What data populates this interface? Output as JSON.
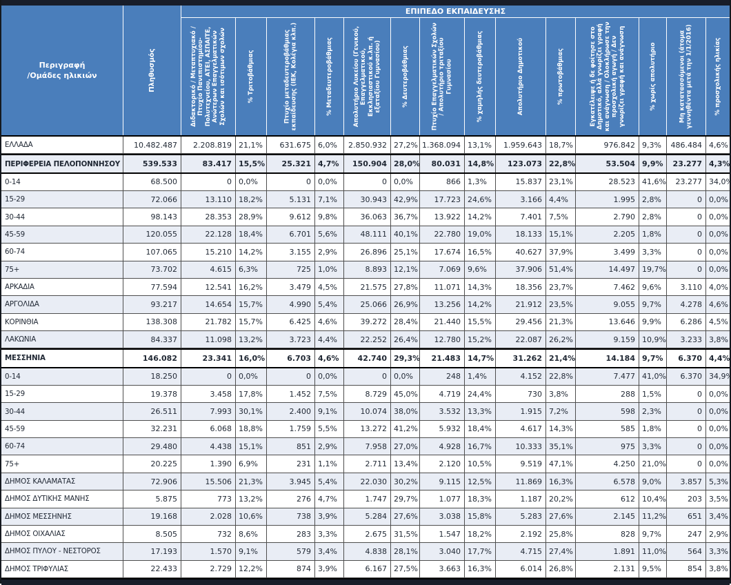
{
  "colors": {
    "header_blue": "#4A7EBB",
    "dark_band": "#181D29",
    "row_stripe": "#E9EDF5",
    "grid_line": "#4D4D4D",
    "text": "#1F2733",
    "header_text": "#FFFFFF"
  },
  "chart_data": {
    "type": "table",
    "title": "ΕΠΙΠΕΔΟ ΕΚΠΑΙΔΕΥΣΗΣ",
    "corner_header": "Περιγραφή\n/Ομάδες ηλικιών",
    "columns": [
      "Πληθυσμός",
      "Διδακτορικό / Μεταπτυχιακό / Πτυχίο Πανεπιστημίου-Πολυτεχνείου, ΑΤΕΙ, ΑΣΠΑΙΤΕ, Ανώτερων Επαγγελματικών Σχολών και ισότιμων σχολών",
      "% Τριτοβάθμιας",
      "Πτυχίο μεταδευτεροβάθμιας εκπαίδευσης (ΙΕΚ, Κολέγια κλπ.)",
      "% Μεταδευτεροβάθμιας",
      "Απολυτήριο Λυκείου (Γενικού, Επαγγελματικού, Εκκλησιαστικού κ.λπ. ή εξαταξίου Γυμνασίου)",
      "% Δευτεροβάθμιας",
      "Πτυχίο Επαγγελματικών Σχολών / Απολυτήριο τριταξίου Γυμνασίου",
      "% χαμηλής δευτεροβάθμιας",
      "Απολυτήριο Δημοτικού",
      "% πρωτοβάθμιας",
      "Εγκατέλειψε ή δε φοίτησε στο Δημοτικό, αλλά γνωρίζει γραφή και ανάγνωση / Ολοκλήρωσε την προσχολική αγωγή / Δεν γνωρίζει γραφή και ανάγνωση",
      "% χωρίς απολυτήριο",
      "Μη κατατασσόμενοι (άτομα γεννηθέντα μετά την 1/1/2016)",
      "% προσχολικής ηλικίας"
    ],
    "rows": [
      {
        "label": "ΕΛΛΑΔΑ",
        "bold": false,
        "values": [
          "10.482.487",
          "2.208.819",
          "21,1%",
          "631.675",
          "6,0%",
          "2.850.932",
          "27,2%",
          "1.368.094",
          "13,1%",
          "1.959.643",
          "18,7%",
          "976.842",
          "9,3%",
          "486.484",
          "4,6%"
        ]
      },
      {
        "label": "ΠΕΡΙΦΕΡΕΙΑ ΠΕΛΟΠΟΝΝΗΣΟΥ",
        "bold": true,
        "values": [
          "539.533",
          "83.417",
          "15,5%",
          "25.321",
          "4,7%",
          "150.904",
          "28,0%",
          "80.031",
          "14,8%",
          "123.073",
          "22,8%",
          "53.504",
          "9,9%",
          "23.277",
          "4,3%"
        ]
      },
      {
        "label": "0-14",
        "bold": false,
        "values": [
          "68.500",
          "0",
          "0,0%",
          "0",
          "0,0%",
          "0",
          "0,0%",
          "866",
          "1,3%",
          "15.837",
          "23,1%",
          "28.523",
          "41,6%",
          "23.277",
          "34,0%"
        ]
      },
      {
        "label": "15-29",
        "bold": false,
        "values": [
          "72.066",
          "13.110",
          "18,2%",
          "5.131",
          "7,1%",
          "30.943",
          "42,9%",
          "17.723",
          "24,6%",
          "3.166",
          "4,4%",
          "1.995",
          "2,8%",
          "0",
          "0,0%"
        ]
      },
      {
        "label": "30-44",
        "bold": false,
        "values": [
          "98.143",
          "28.353",
          "28,9%",
          "9.612",
          "9,8%",
          "36.063",
          "36,7%",
          "13.922",
          "14,2%",
          "7.401",
          "7,5%",
          "2.790",
          "2,8%",
          "0",
          "0,0%"
        ]
      },
      {
        "label": "45-59",
        "bold": false,
        "values": [
          "120.055",
          "22.128",
          "18,4%",
          "6.701",
          "5,6%",
          "48.111",
          "40,1%",
          "22.780",
          "19,0%",
          "18.133",
          "15,1%",
          "2.205",
          "1,8%",
          "0",
          "0,0%"
        ]
      },
      {
        "label": "60-74",
        "bold": false,
        "values": [
          "107.065",
          "15.210",
          "14,2%",
          "3.155",
          "2,9%",
          "26.896",
          "25,1%",
          "17.674",
          "16,5%",
          "40.627",
          "37,9%",
          "3.499",
          "3,3%",
          "0",
          "0,0%"
        ]
      },
      {
        "label": "75+",
        "bold": false,
        "values": [
          "73.702",
          "4.615",
          "6,3%",
          "725",
          "1,0%",
          "8.893",
          "12,1%",
          "7.069",
          "9,6%",
          "37.906",
          "51,4%",
          "14.497",
          "19,7%",
          "0",
          "0,0%"
        ]
      },
      {
        "label": "ΑΡΚΑΔΙΑ",
        "bold": false,
        "values": [
          "77.594",
          "12.541",
          "16,2%",
          "3.479",
          "4,5%",
          "21.575",
          "27,8%",
          "11.071",
          "14,3%",
          "18.356",
          "23,7%",
          "7.462",
          "9,6%",
          "3.110",
          "4,0%"
        ]
      },
      {
        "label": "ΑΡΓΟΛΙΔΑ",
        "bold": false,
        "values": [
          "93.217",
          "14.654",
          "15,7%",
          "4.990",
          "5,4%",
          "25.066",
          "26,9%",
          "13.256",
          "14,2%",
          "21.912",
          "23,5%",
          "9.055",
          "9,7%",
          "4.278",
          "4,6%"
        ]
      },
      {
        "label": "ΚΟΡΙΝΘΙΑ",
        "bold": false,
        "values": [
          "138.308",
          "21.782",
          "15,7%",
          "6.425",
          "4,6%",
          "39.272",
          "28,4%",
          "21.440",
          "15,5%",
          "29.456",
          "21,3%",
          "13.646",
          "9,9%",
          "6.286",
          "4,5%"
        ]
      },
      {
        "label": "ΛΑΚΩΝΙΑ",
        "bold": false,
        "values": [
          "84.337",
          "11.098",
          "13,2%",
          "3.723",
          "4,4%",
          "22.252",
          "26,4%",
          "12.780",
          "15,2%",
          "22.087",
          "26,2%",
          "9.159",
          "10,9%",
          "3.233",
          "3,8%"
        ]
      },
      {
        "label": "ΜΕΣΣΗΝΙΑ",
        "bold": true,
        "values": [
          "146.082",
          "23.341",
          "16,0%",
          "6.703",
          "4,6%",
          "42.740",
          "29,3%",
          "21.483",
          "14,7%",
          "31.262",
          "21,4%",
          "14.184",
          "9,7%",
          "6.370",
          "4,4%"
        ]
      },
      {
        "label": "0-14",
        "bold": false,
        "values": [
          "18.250",
          "0",
          "0,0%",
          "0",
          "0,0%",
          "0",
          "0,0%",
          "248",
          "1,4%",
          "4.152",
          "22,8%",
          "7.477",
          "41,0%",
          "6.370",
          "34,9%"
        ]
      },
      {
        "label": "15-29",
        "bold": false,
        "values": [
          "19.378",
          "3.458",
          "17,8%",
          "1.452",
          "7,5%",
          "8.729",
          "45,0%",
          "4.719",
          "24,4%",
          "730",
          "3,8%",
          "288",
          "1,5%",
          "0",
          "0,0%"
        ]
      },
      {
        "label": "30-44",
        "bold": false,
        "values": [
          "26.511",
          "7.993",
          "30,1%",
          "2.400",
          "9,1%",
          "10.074",
          "38,0%",
          "3.532",
          "13,3%",
          "1.915",
          "7,2%",
          "598",
          "2,3%",
          "0",
          "0,0%"
        ]
      },
      {
        "label": "45-59",
        "bold": false,
        "values": [
          "32.231",
          "6.068",
          "18,8%",
          "1.759",
          "5,5%",
          "13.272",
          "41,2%",
          "5.932",
          "18,4%",
          "4.617",
          "14,3%",
          "585",
          "1,8%",
          "0",
          "0,0%"
        ]
      },
      {
        "label": "60-74",
        "bold": false,
        "values": [
          "29.480",
          "4.438",
          "15,1%",
          "851",
          "2,9%",
          "7.958",
          "27,0%",
          "4.928",
          "16,7%",
          "10.333",
          "35,1%",
          "975",
          "3,3%",
          "0",
          "0,0%"
        ]
      },
      {
        "label": "75+",
        "bold": false,
        "values": [
          "20.225",
          "1.390",
          "6,9%",
          "231",
          "1,1%",
          "2.711",
          "13,4%",
          "2.120",
          "10,5%",
          "9.519",
          "47,1%",
          "4.250",
          "21,0%",
          "0",
          "0,0%"
        ]
      },
      {
        "label": "ΔΗΜΟΣ ΚΑΛΑΜΑΤΑΣ",
        "bold": false,
        "values": [
          "72.906",
          "15.506",
          "21,3%",
          "3.945",
          "5,4%",
          "22.030",
          "30,2%",
          "9.115",
          "12,5%",
          "11.869",
          "16,3%",
          "6.578",
          "9,0%",
          "3.857",
          "5,3%"
        ]
      },
      {
        "label": "ΔΗΜΟΣ ΔΥΤΙΚΗΣ ΜΑΝΗΣ",
        "bold": false,
        "values": [
          "5.875",
          "773",
          "13,2%",
          "276",
          "4,7%",
          "1.747",
          "29,7%",
          "1.077",
          "18,3%",
          "1.187",
          "20,2%",
          "612",
          "10,4%",
          "203",
          "3,5%"
        ]
      },
      {
        "label": "ΔΗΜΟΣ ΜΕΣΣΗΝΗΣ",
        "bold": false,
        "values": [
          "19.168",
          "2.028",
          "10,6%",
          "738",
          "3,9%",
          "5.284",
          "27,6%",
          "3.038",
          "15,8%",
          "5.283",
          "27,6%",
          "2.145",
          "11,2%",
          "651",
          "3,4%"
        ]
      },
      {
        "label": "ΔΗΜΟΣ ΟΙΧΑΛΙΑΣ",
        "bold": false,
        "values": [
          "8.505",
          "732",
          "8,6%",
          "283",
          "3,3%",
          "2.675",
          "31,5%",
          "1.547",
          "18,2%",
          "2.192",
          "25,8%",
          "828",
          "9,7%",
          "247",
          "2,9%"
        ]
      },
      {
        "label": "ΔΗΜΟΣ ΠΥΛΟΥ - ΝΕΣΤΟΡΟΣ",
        "bold": false,
        "values": [
          "17.193",
          "1.570",
          "9,1%",
          "579",
          "3,4%",
          "4.838",
          "28,1%",
          "3.040",
          "17,7%",
          "4.715",
          "27,4%",
          "1.891",
          "11,0%",
          "564",
          "3,3%"
        ]
      },
      {
        "label": "ΔΗΜΟΣ ΤΡΙΦΥΛΙΑΣ",
        "bold": false,
        "values": [
          "22.433",
          "2.729",
          "12,2%",
          "874",
          "3,9%",
          "6.167",
          "27,5%",
          "3.663",
          "16,3%",
          "6.014",
          "26,8%",
          "2.131",
          "9,5%",
          "854",
          "3,8%"
        ]
      }
    ]
  }
}
